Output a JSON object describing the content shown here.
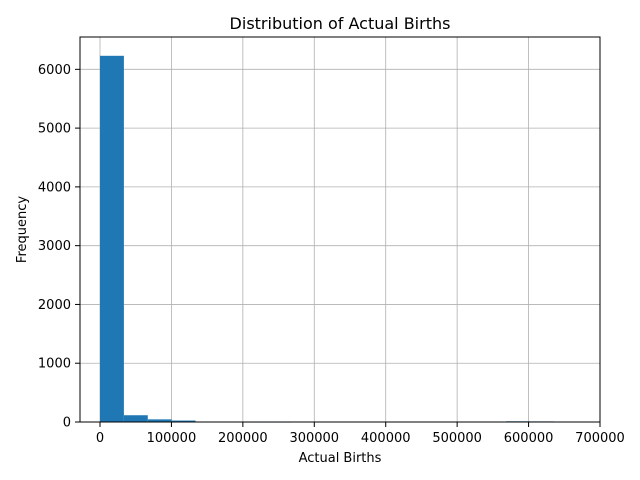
{
  "chart_data": {
    "type": "bar",
    "title": "Distribution of Actual Births",
    "xlabel": "Actual Births",
    "ylabel": "Frequency",
    "xlim": [
      -28000,
      700000
    ],
    "ylim": [
      0,
      6550
    ],
    "grid": true,
    "bar_color": "#1f77b4",
    "grid_color": "#b0b0b0",
    "x_ticks": [
      0,
      100000,
      200000,
      300000,
      400000,
      500000,
      600000,
      700000
    ],
    "x_tick_labels": [
      "0",
      "100000",
      "200000",
      "300000",
      "400000",
      "500000",
      "600000",
      "700000"
    ],
    "y_ticks": [
      0,
      1000,
      2000,
      3000,
      4000,
      5000,
      6000
    ],
    "y_tick_labels": [
      "0",
      "1000",
      "2000",
      "3000",
      "4000",
      "5000",
      "6000"
    ],
    "bins": [
      {
        "start": 0,
        "end": 33450,
        "count": 6230
      },
      {
        "start": 33450,
        "end": 66900,
        "count": 115
      },
      {
        "start": 66900,
        "end": 100350,
        "count": 45
      },
      {
        "start": 100350,
        "end": 133800,
        "count": 25
      },
      {
        "start": 133800,
        "end": 167250,
        "count": 3
      },
      {
        "start": 167250,
        "end": 200700,
        "count": 2
      },
      {
        "start": 200700,
        "end": 234150,
        "count": 1
      },
      {
        "start": 234150,
        "end": 267600,
        "count": 1
      },
      {
        "start": 267600,
        "end": 301050,
        "count": 0
      },
      {
        "start": 301050,
        "end": 334500,
        "count": 0
      },
      {
        "start": 334500,
        "end": 367950,
        "count": 0
      },
      {
        "start": 367950,
        "end": 401400,
        "count": 0
      },
      {
        "start": 401400,
        "end": 434850,
        "count": 0
      },
      {
        "start": 434850,
        "end": 468300,
        "count": 0
      },
      {
        "start": 468300,
        "end": 501750,
        "count": 0
      },
      {
        "start": 501750,
        "end": 535200,
        "count": 0
      },
      {
        "start": 535200,
        "end": 568650,
        "count": 0
      },
      {
        "start": 568650,
        "end": 602100,
        "count": 12
      },
      {
        "start": 602100,
        "end": 635550,
        "count": 10
      },
      {
        "start": 635550,
        "end": 669000,
        "count": 8
      }
    ]
  }
}
